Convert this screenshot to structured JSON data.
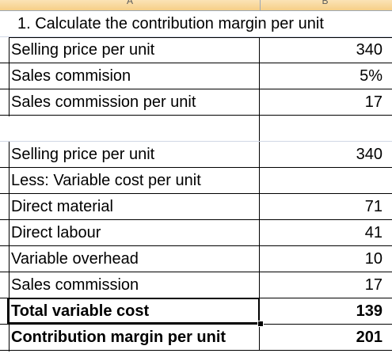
{
  "columns": {
    "a": "A",
    "b": "B"
  },
  "title": "1. Calculate the contribution margin per unit",
  "section1": [
    {
      "label": "Selling price per unit",
      "value": "340"
    },
    {
      "label": "Sales commision",
      "value": "5%"
    },
    {
      "label": "Sales commission per unit",
      "value": "17"
    }
  ],
  "section2": [
    {
      "label": "Selling price per unit",
      "value": "340"
    },
    {
      "label": "Less: Variable cost per unit",
      "value": ""
    },
    {
      "label": "Direct material",
      "value": "71"
    },
    {
      "label": "Direct labour",
      "value": "41"
    },
    {
      "label": "Variable overhead",
      "value": "10"
    },
    {
      "label": "Sales commission",
      "value": "17"
    },
    {
      "label": "Total variable cost",
      "value": "139"
    },
    {
      "label": "Contribution margin per unit",
      "value": "201"
    }
  ]
}
